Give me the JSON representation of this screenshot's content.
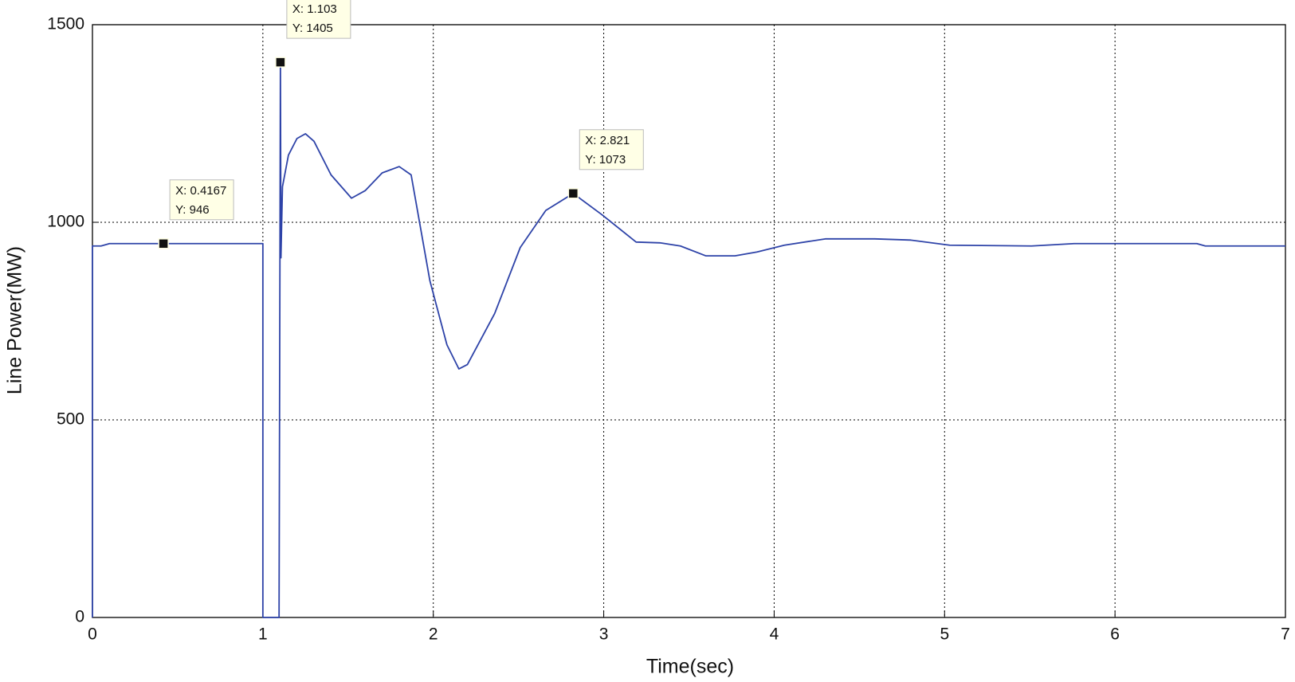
{
  "chart_data": {
    "type": "line",
    "xlabel": "Time(sec)",
    "ylabel": "Line Power(MW)",
    "xlim": [
      0,
      7
    ],
    "xticks": [
      0,
      1,
      2,
      3,
      4,
      5,
      6,
      7
    ],
    "ylim": [
      0,
      1500
    ],
    "yticks": [
      0,
      500,
      1000,
      1500
    ],
    "grid": true,
    "series": [
      {
        "color": "#2e43a8",
        "x": [
          0,
          0,
          0.05,
          0.1,
          0.4167,
          1.0,
          1.0,
          1.095,
          1.103,
          1.106,
          1.115,
          1.15,
          1.2,
          1.25,
          1.3,
          1.4,
          1.52,
          1.6,
          1.7,
          1.8,
          1.87,
          1.98,
          2.08,
          2.15,
          2.2,
          2.36,
          2.51,
          2.66,
          2.821,
          2.99,
          3.19,
          3.33,
          3.45,
          3.6,
          3.77,
          3.9,
          4.06,
          4.3,
          4.59,
          4.8,
          5.03,
          5.51,
          5.76,
          6.48,
          6.53,
          7
        ],
        "values": [
          0,
          940,
          940,
          946,
          946,
          946,
          0,
          0,
          1405,
          910,
          1090,
          1170,
          1212,
          1224,
          1205,
          1120,
          1061,
          1080,
          1125,
          1141,
          1120,
          852,
          690,
          629,
          640,
          769,
          936,
          1030,
          1073,
          1019,
          950,
          948,
          940,
          915,
          915,
          925,
          942,
          958,
          958,
          955,
          942,
          940,
          946,
          946,
          940,
          940
        ]
      }
    ],
    "annotations": [
      {
        "x": 0.4167,
        "y": 946,
        "x_label": "X: 0.4167",
        "y_label": "Y: 946"
      },
      {
        "x": 1.103,
        "y": 1405,
        "x_label": "X: 1.103",
        "y_label": "Y: 1405"
      },
      {
        "x": 2.821,
        "y": 1073,
        "x_label": "X: 2.821",
        "y_label": "Y: 1073"
      }
    ]
  }
}
